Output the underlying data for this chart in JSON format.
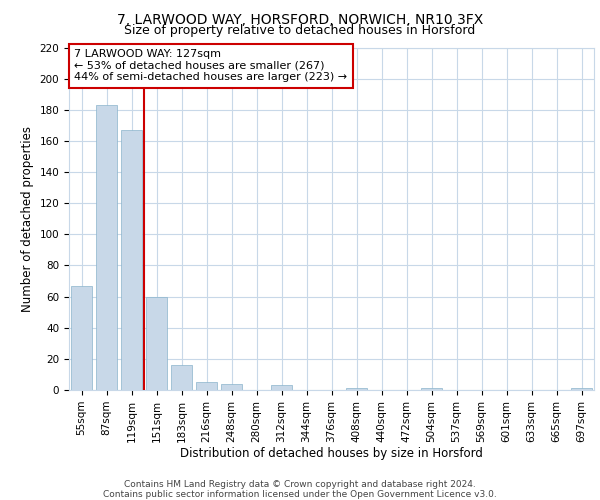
{
  "title1": "7, LARWOOD WAY, HORSFORD, NORWICH, NR10 3FX",
  "title2": "Size of property relative to detached houses in Horsford",
  "xlabel": "Distribution of detached houses by size in Horsford",
  "ylabel": "Number of detached properties",
  "categories": [
    "55sqm",
    "87sqm",
    "119sqm",
    "151sqm",
    "183sqm",
    "216sqm",
    "248sqm",
    "280sqm",
    "312sqm",
    "344sqm",
    "376sqm",
    "408sqm",
    "440sqm",
    "472sqm",
    "504sqm",
    "537sqm",
    "569sqm",
    "601sqm",
    "633sqm",
    "665sqm",
    "697sqm"
  ],
  "values": [
    67,
    183,
    167,
    60,
    16,
    5,
    4,
    0,
    3,
    0,
    0,
    1,
    0,
    0,
    1,
    0,
    0,
    0,
    0,
    0,
    1
  ],
  "bar_color": "#c8d8e8",
  "bar_edgecolor": "#8ab4cc",
  "grid_color": "#c8d8e8",
  "background_color": "#ffffff",
  "property_line_x": 2.5,
  "annotation_text": "7 LARWOOD WAY: 127sqm\n← 53% of detached houses are smaller (267)\n44% of semi-detached houses are larger (223) →",
  "annotation_box_color": "#ffffff",
  "annotation_box_edgecolor": "#cc0000",
  "property_line_color": "#cc0000",
  "ylim": [
    0,
    220
  ],
  "yticks": [
    0,
    20,
    40,
    60,
    80,
    100,
    120,
    140,
    160,
    180,
    200,
    220
  ],
  "footnote": "Contains HM Land Registry data © Crown copyright and database right 2024.\nContains public sector information licensed under the Open Government Licence v3.0.",
  "title1_fontsize": 10,
  "title2_fontsize": 9,
  "xlabel_fontsize": 8.5,
  "ylabel_fontsize": 8.5,
  "tick_fontsize": 7.5,
  "annotation_fontsize": 8,
  "footnote_fontsize": 6.5
}
